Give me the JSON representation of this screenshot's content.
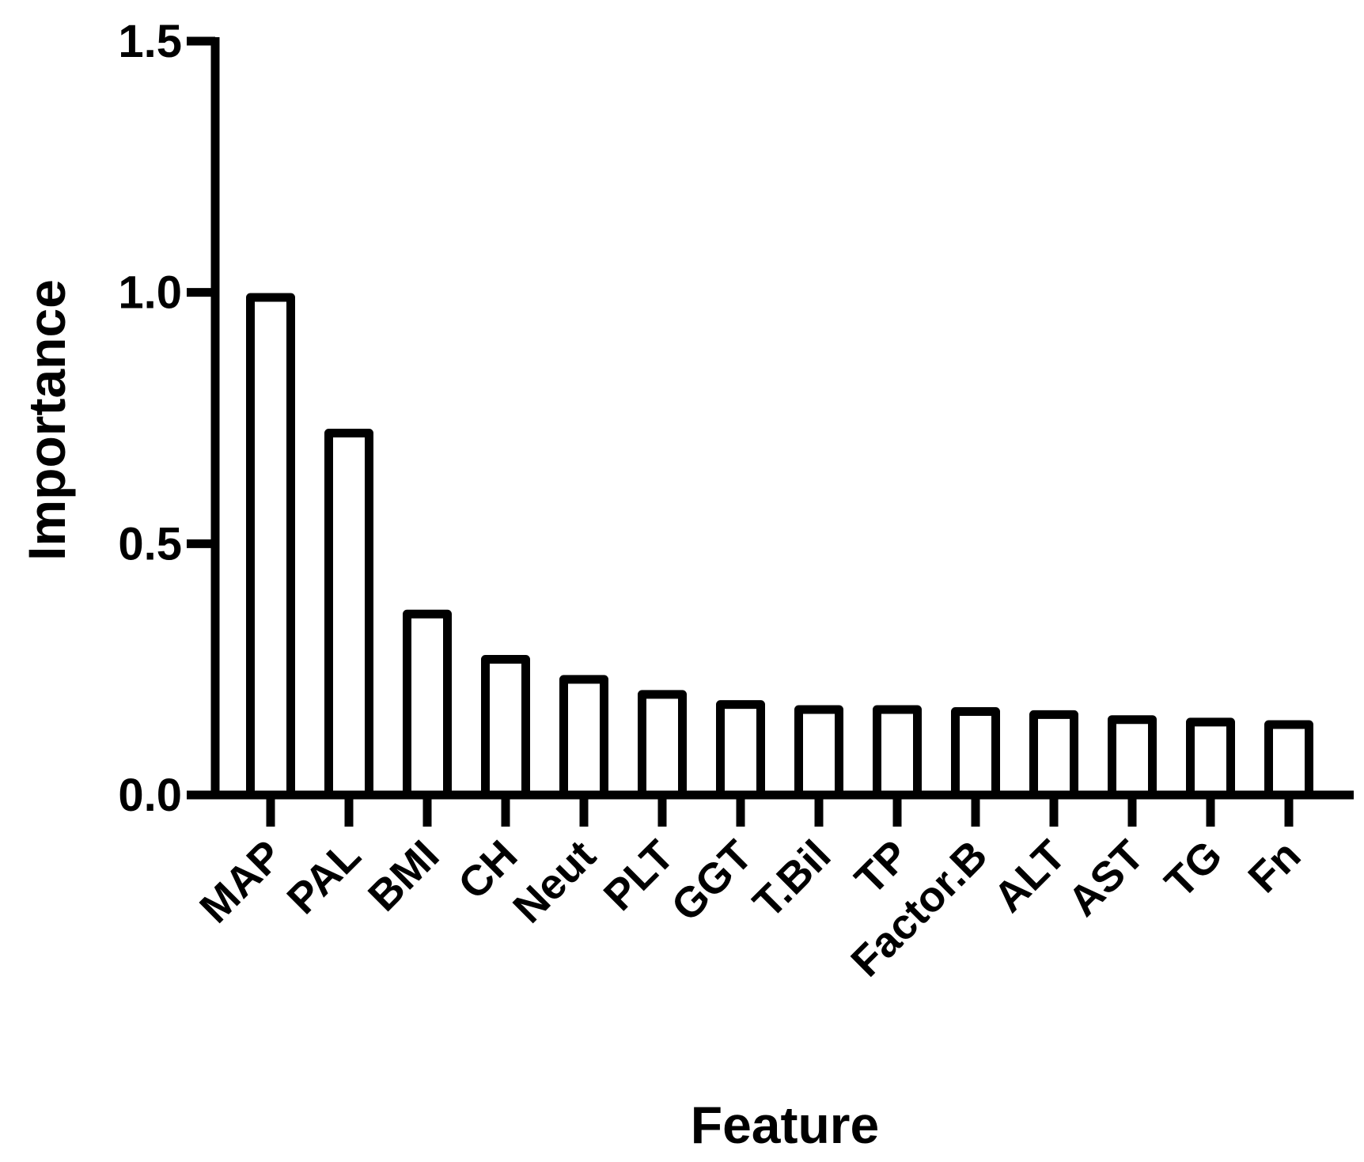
{
  "chart_data": {
    "type": "bar",
    "x_label": "Feature",
    "y_label": "Importance",
    "categories": [
      "MAP",
      "PAL",
      "BMI",
      "CH",
      "Neut",
      "PLT",
      "GGT",
      "T.Bil",
      "TP",
      "Factor.B",
      "ALT",
      "AST",
      "TG",
      "Fn"
    ],
    "values": [
      0.99,
      0.72,
      0.36,
      0.27,
      0.23,
      0.2,
      0.18,
      0.17,
      0.17,
      0.166,
      0.16,
      0.15,
      0.145,
      0.14
    ],
    "color": "#ffffff",
    "ylim": [
      0,
      1.5
    ],
    "yticks": [
      {
        "value": 0,
        "label": "0.0"
      },
      0.5,
      {
        "value": 1,
        "label": "1.0"
      },
      1.5
    ],
    "grid": false
  }
}
